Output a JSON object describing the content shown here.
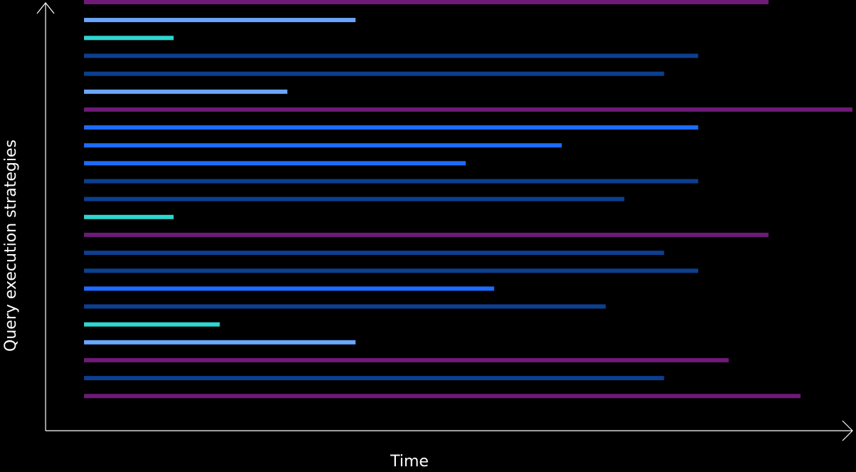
{
  "chart_data": {
    "type": "bar",
    "orientation": "horizontal",
    "xlabel": "Time",
    "ylabel": "Query execution strategies",
    "grid": false,
    "legend": "none",
    "xlim": [
      0,
      1084
    ],
    "colors": {
      "purple": "#6f1a78",
      "light_blue": "#6aa6ff",
      "cyan": "#2ed6d0",
      "navy": "#0c3f8f",
      "bright_blue": "#1d6bff"
    },
    "bars": [
      {
        "start": 0,
        "end": 963,
        "color": "purple"
      },
      {
        "start": 0,
        "end": 382,
        "color": "light_blue"
      },
      {
        "start": 0,
        "end": 126,
        "color": "cyan"
      },
      {
        "start": 0,
        "end": 864,
        "color": "navy"
      },
      {
        "start": 0,
        "end": 816,
        "color": "navy"
      },
      {
        "start": 0,
        "end": 286,
        "color": "light_blue"
      },
      {
        "start": 0,
        "end": 1081,
        "color": "purple"
      },
      {
        "start": 0,
        "end": 864,
        "color": "bright_blue"
      },
      {
        "start": 0,
        "end": 672,
        "color": "bright_blue"
      },
      {
        "start": 0,
        "end": 537,
        "color": "bright_blue"
      },
      {
        "start": 0,
        "end": 864,
        "color": "navy"
      },
      {
        "start": 0,
        "end": 760,
        "color": "navy"
      },
      {
        "start": 0,
        "end": 126,
        "color": "cyan"
      },
      {
        "start": 0,
        "end": 963,
        "color": "purple"
      },
      {
        "start": 0,
        "end": 816,
        "color": "navy"
      },
      {
        "start": 0,
        "end": 864,
        "color": "navy"
      },
      {
        "start": 0,
        "end": 577,
        "color": "bright_blue"
      },
      {
        "start": 0,
        "end": 734,
        "color": "navy"
      },
      {
        "start": 0,
        "end": 191,
        "color": "cyan"
      },
      {
        "start": 0,
        "end": 382,
        "color": "light_blue"
      },
      {
        "start": 0,
        "end": 907,
        "color": "purple"
      },
      {
        "start": 0,
        "end": 816,
        "color": "navy"
      },
      {
        "start": 0,
        "end": 1008,
        "color": "purple"
      }
    ]
  }
}
